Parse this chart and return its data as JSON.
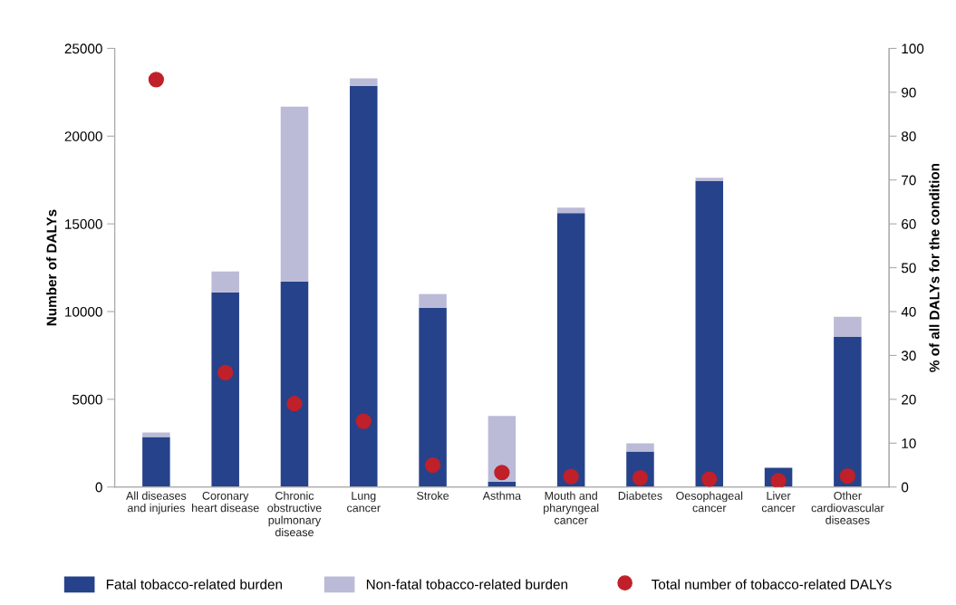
{
  "chart_data": {
    "type": "bar",
    "stacked": true,
    "ylabel": "Number of DALYs",
    "y2label": "% of all DALYs for the condition",
    "categories": [
      "All diseases\nand injuries",
      "Coronary\nheart disease",
      "Chronic\nobstructive\npulmonary\ndisease",
      "Lung\ncancer",
      "Stroke",
      "Asthma",
      "Mouth and\npharyngeal\ncancer",
      "Diabetes",
      "Oesophageal\ncancer",
      "Liver\ncancer",
      "Other\ncardiovascular\ndiseases"
    ],
    "series": [
      {
        "name": "Fatal tobacco-related burden",
        "color": "#26428b",
        "values": [
          2850,
          11100,
          11720,
          22870,
          10220,
          310,
          15610,
          2020,
          17430,
          1090,
          8560
        ]
      },
      {
        "name": "Non-fatal tobacco-related burden",
        "color": "#bbbbd8",
        "values": [
          260,
          1190,
          9960,
          420,
          780,
          3740,
          310,
          470,
          200,
          0,
          1140
        ]
      },
      {
        "name": "Total number of tobacco-related DALYs",
        "type": "scatter",
        "axis": "y2",
        "color": "#c0202a",
        "marker": "circle",
        "values": [
          92.9,
          26.1,
          19.0,
          15.0,
          5.0,
          3.3,
          2.4,
          2.1,
          1.8,
          1.4,
          2.5
        ]
      }
    ],
    "ylim": [
      0,
      25000
    ],
    "yticks": [
      0,
      5000,
      10000,
      15000,
      20000,
      25000
    ],
    "y2lim": [
      0,
      100
    ],
    "y2ticks": [
      0,
      10,
      20,
      30,
      40,
      50,
      60,
      70,
      80,
      90,
      100
    ],
    "grid": false,
    "legend": "bottom"
  }
}
